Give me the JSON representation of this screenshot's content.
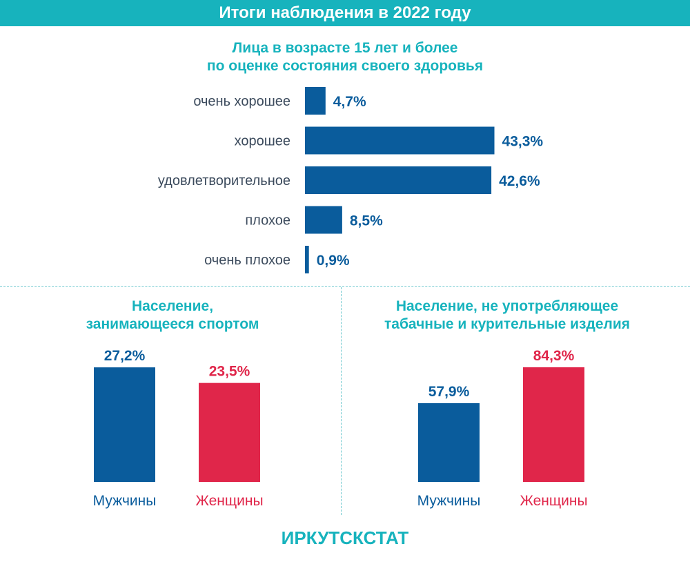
{
  "header": {
    "title": "Итоги наблюдения в 2022 году"
  },
  "footer": {
    "text": "ИРКУТСКСТАТ"
  },
  "colors": {
    "teal": "#17b3bd",
    "blue": "#0a5c9c",
    "red": "#e0264a",
    "label": "#3b4a5c"
  },
  "chart_data": [
    {
      "type": "bar",
      "orientation": "horizontal",
      "title_lines": [
        "Лица в возрасте 15 лет и более",
        "по оценке состояния своего здоровья"
      ],
      "categories": [
        "очень хорошее",
        "хорошее",
        "удовлетворительное",
        "плохое",
        "очень плохое"
      ],
      "values": [
        4.7,
        43.3,
        42.6,
        8.5,
        0.9
      ],
      "value_labels": [
        "4,7%",
        "43,3%",
        "42,6%",
        "8,5%",
        "0,9%"
      ],
      "color": "#0a5c9c",
      "grid": false
    },
    {
      "type": "bar",
      "title_lines": [
        "Население,",
        "занимающееся спортом"
      ],
      "categories": [
        "Мужчины",
        "Женщины"
      ],
      "values": [
        27.2,
        23.5
      ],
      "value_labels": [
        "27,2%",
        "23,5%"
      ],
      "colors": [
        "#0a5c9c",
        "#e0264a"
      ],
      "grid": false
    },
    {
      "type": "bar",
      "title_lines": [
        "Население, не употребляющее",
        "табачные  и курительные изделия"
      ],
      "categories": [
        "Мужчины",
        "Женщины"
      ],
      "values": [
        57.9,
        84.3
      ],
      "value_labels": [
        "57,9%",
        "84,3%"
      ],
      "colors": [
        "#0a5c9c",
        "#e0264a"
      ],
      "grid": false
    }
  ]
}
